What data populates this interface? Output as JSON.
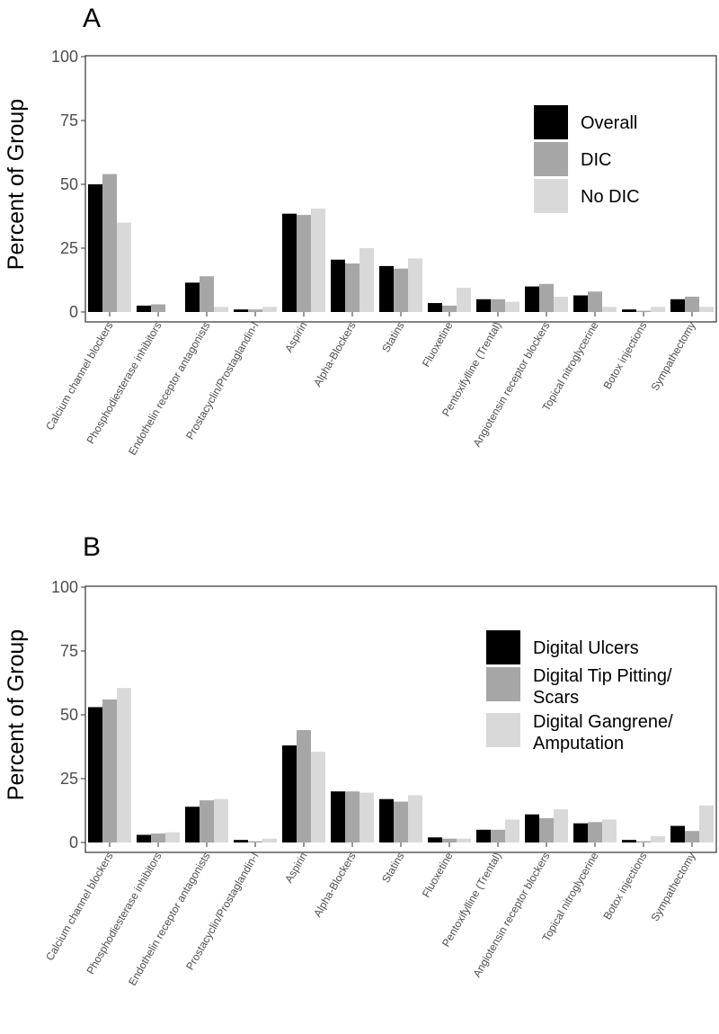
{
  "colors": {
    "series": [
      "#000000",
      "#a6a6a6",
      "#d9d9d9"
    ],
    "panel_border": "#333333",
    "tick_text": "#4d4d4d"
  },
  "chart_data": [
    {
      "type": "bar",
      "panel": "A",
      "ylabel": "Percent of Group",
      "ylim": [
        0,
        100
      ],
      "yticks": [
        0,
        25,
        50,
        75,
        100
      ],
      "grid": false,
      "legend_position": "top-right",
      "categories": [
        "Calcium channel blockers",
        "Phosphodiesterase inhibitors",
        "Endothelin receptor antagonists",
        "Prostacyclin/Prostaglandin-I",
        "Aspirin",
        "Alpha-Blockers",
        "Statins",
        "Fluoxetine",
        "Pentoxifylline (Trental)",
        "Angiotensin receptor blockers",
        "Topical nitroglycerine",
        "Botox injections",
        "Sympathectomy"
      ],
      "series": [
        {
          "name": "Overall",
          "values": [
            50,
            2.5,
            11.5,
            1,
            38.5,
            20.5,
            18,
            3.5,
            5,
            10,
            6.5,
            1,
            5
          ]
        },
        {
          "name": "DIC",
          "values": [
            54,
            3,
            14,
            1,
            38,
            19,
            17,
            2.5,
            5,
            11,
            8,
            0.5,
            6
          ]
        },
        {
          "name": "No DIC",
          "values": [
            35,
            0,
            2,
            2,
            40.5,
            25,
            21,
            9.5,
            4,
            6,
            2,
            2,
            2
          ]
        }
      ]
    },
    {
      "type": "bar",
      "panel": "B",
      "ylabel": "Percent of Group",
      "ylim": [
        0,
        100
      ],
      "yticks": [
        0,
        25,
        50,
        75,
        100
      ],
      "grid": false,
      "legend_position": "top-right",
      "categories": [
        "Calcium channel blockers",
        "Phosphodiesterase inhibitors",
        "Endothelin receptor antagonists",
        "Prostacyclin/Prostaglandin-I",
        "Aspirin",
        "Alpha-Blockers",
        "Statins",
        "Fluoxetine",
        "Pentoxifylline (Trental)",
        "Angiotensin receptor blockers",
        "Topical nitroglycerine",
        "Botox injections",
        "Sympathectomy"
      ],
      "series": [
        {
          "name": "Digital Ulcers",
          "legend_lines": [
            "Digital Ulcers"
          ],
          "values": [
            53,
            3,
            14,
            1,
            38,
            20,
            17,
            2,
            5,
            11,
            7.5,
            1,
            6.5
          ]
        },
        {
          "name": "Digital Tip Pitting/ Scars",
          "legend_lines": [
            "Digital Tip Pitting/",
            "Scars"
          ],
          "values": [
            56,
            3.5,
            16.5,
            0.5,
            44,
            20,
            16,
            1.5,
            5,
            9.5,
            8,
            0.5,
            4.5
          ]
        },
        {
          "name": "Digital Gangrene/ Amputation",
          "legend_lines": [
            "Digital Gangrene/",
            "Amputation"
          ],
          "values": [
            60.5,
            4,
            17,
            1.5,
            35.5,
            19.5,
            18.5,
            1.5,
            9,
            13,
            9,
            2.5,
            14.5
          ]
        }
      ]
    }
  ]
}
